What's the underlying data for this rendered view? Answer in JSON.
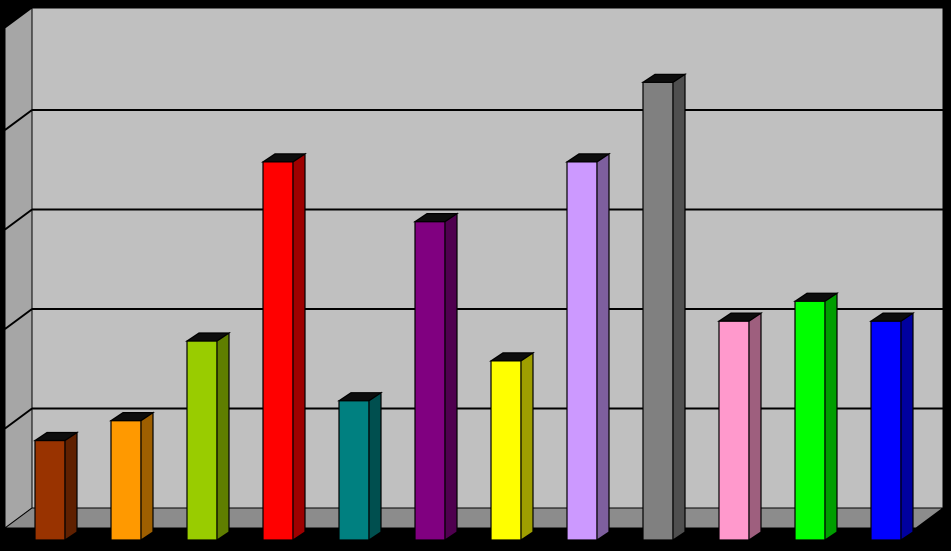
{
  "chart_data": {
    "type": "bar",
    "title": "",
    "xlabel": "",
    "ylabel": "",
    "ylim": [
      0,
      5
    ],
    "grid": true,
    "legend": "none",
    "style": "3d-columns",
    "categories": [
      "",
      "",
      "",
      "",
      "",
      "",
      "",
      "",
      "",
      "",
      "",
      ""
    ],
    "values": [
      1.0,
      1.2,
      2.0,
      3.8,
      1.4,
      3.2,
      1.8,
      3.8,
      4.6,
      2.2,
      2.4,
      2.2
    ],
    "colors": [
      "#993300",
      "#FF9900",
      "#99CC00",
      "#FF0000",
      "#008080",
      "#800080",
      "#FFFF00",
      "#CC99FF",
      "#808080",
      "#FF99CC",
      "#00FF00",
      "#0000FF"
    ]
  },
  "theme": {
    "frame": "#000000",
    "wall": "#C0C0C0",
    "side_wall": "#A6A6A6",
    "floor": "#8C8C8C",
    "gridline": "#000000"
  }
}
